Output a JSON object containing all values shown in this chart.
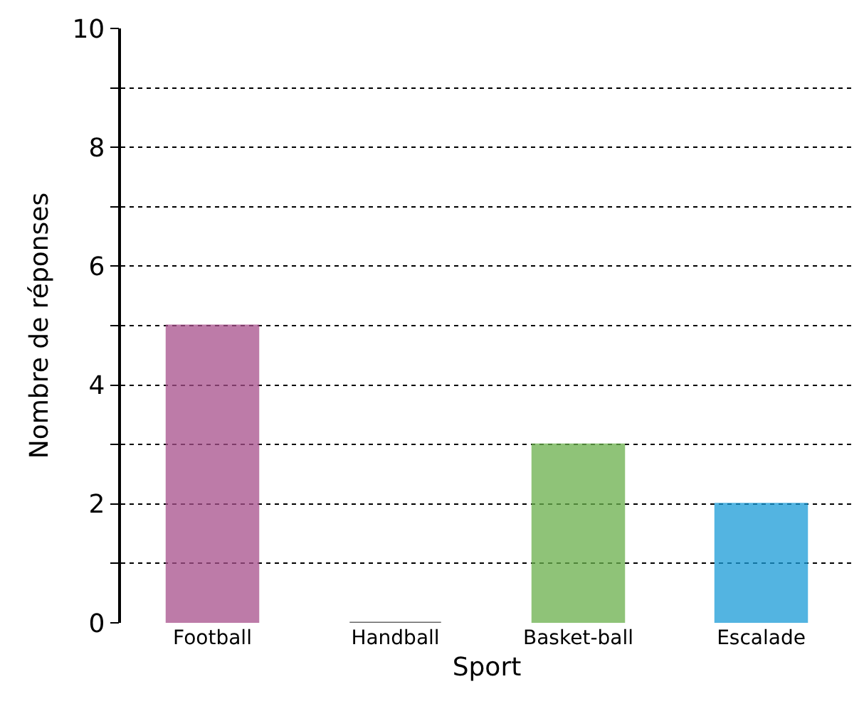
{
  "chart_data": {
    "type": "bar",
    "xlabel": "Sport",
    "ylabel": "Nombre de réponses",
    "categories": [
      "Football",
      "Handball",
      "Basket-ball",
      "Escalade"
    ],
    "values": [
      5,
      0,
      3,
      2
    ],
    "colors": [
      "#a8508c",
      "#333333",
      "#6ab04c",
      "#1a9bd7"
    ],
    "ylim": [
      0,
      10
    ],
    "yticks": [
      0,
      {
        "value": 1,
        "label": null
      },
      2,
      {
        "value": 3,
        "label": null
      },
      4,
      {
        "value": 5,
        "label": null
      },
      6,
      {
        "value": 7,
        "label": null
      },
      8,
      {
        "value": 9,
        "label": null
      },
      10
    ],
    "grid": "y"
  }
}
